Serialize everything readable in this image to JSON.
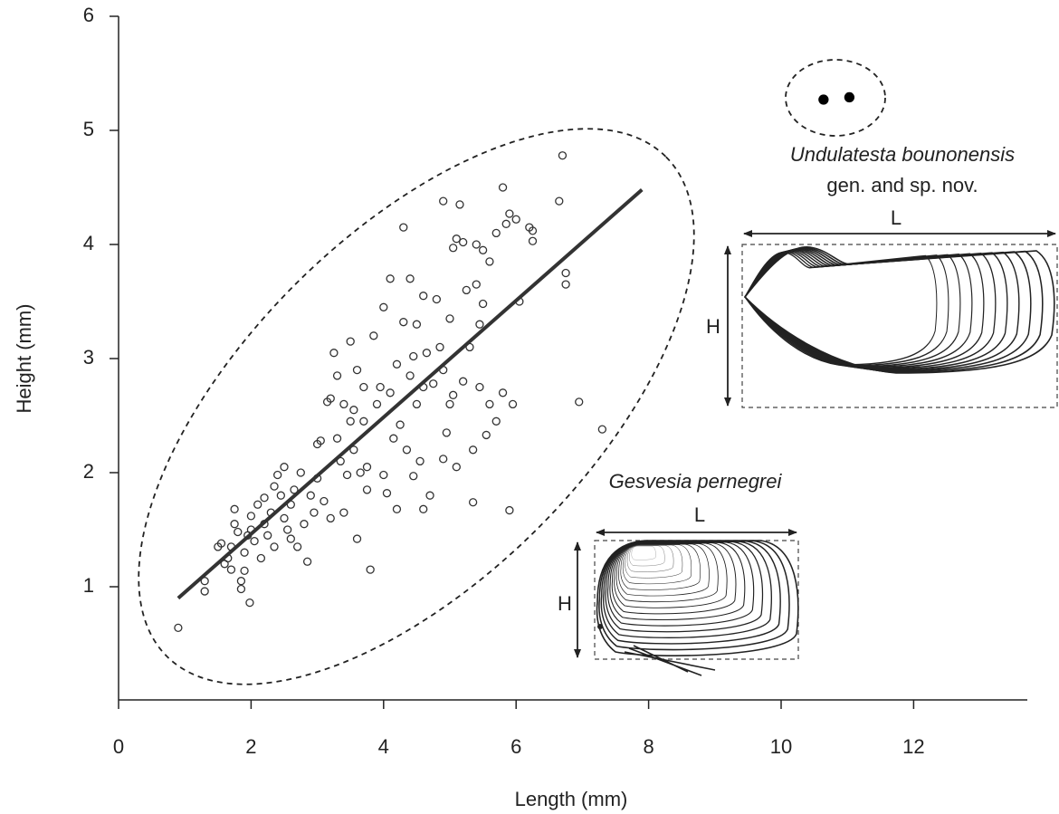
{
  "chart_data": {
    "type": "scatter",
    "xlabel": "Length (mm)",
    "ylabel": "Height (mm)",
    "xlim": [
      0,
      13.7
    ],
    "ylim": [
      0,
      6
    ],
    "xticks": [
      0,
      2,
      4,
      6,
      8,
      10,
      12
    ],
    "yticks": [
      1,
      2,
      3,
      4,
      5,
      6
    ],
    "series": [
      {
        "name": "Gesvesia pernegrei",
        "color": "#333333",
        "filled": false,
        "x": [
          0.9,
          1.3,
          1.3,
          1.5,
          1.55,
          1.6,
          1.65,
          1.7,
          1.75,
          1.75,
          1.8,
          1.85,
          1.85,
          1.9,
          1.9,
          1.95,
          2.0,
          1.98,
          2.05,
          2.1,
          2.15,
          2.2,
          2.2,
          2.25,
          2.3,
          2.35,
          2.35,
          2.4,
          2.45,
          2.5,
          2.5,
          2.55,
          2.6,
          2.65,
          2.7,
          2.75,
          2.8,
          2.85,
          2.9,
          2.95,
          3.0,
          3.0,
          3.05,
          3.1,
          3.15,
          3.2,
          3.2,
          3.25,
          3.3,
          3.35,
          3.4,
          3.4,
          3.45,
          3.5,
          3.5,
          3.55,
          3.55,
          3.6,
          3.6,
          3.65,
          3.7,
          3.7,
          3.75,
          3.75,
          3.8,
          3.85,
          3.9,
          3.95,
          4.0,
          4.0,
          4.05,
          4.1,
          4.1,
          4.15,
          4.2,
          4.2,
          4.25,
          4.3,
          4.3,
          4.35,
          4.4,
          4.4,
          4.45,
          4.5,
          4.5,
          4.55,
          4.6,
          4.6,
          4.6,
          4.65,
          4.7,
          4.75,
          4.8,
          4.85,
          4.9,
          4.9,
          4.95,
          5.0,
          5.0,
          5.05,
          5.05,
          5.1,
          5.1,
          5.15,
          5.2,
          5.2,
          5.25,
          5.3,
          5.35,
          5.35,
          5.4,
          5.4,
          5.45,
          5.5,
          5.5,
          5.55,
          5.6,
          5.6,
          5.7,
          5.7,
          5.8,
          5.8,
          5.85,
          5.9,
          5.9,
          5.95,
          6.0,
          6.05,
          6.2,
          6.25,
          6.25,
          6.65,
          6.7,
          6.75,
          6.75,
          6.95,
          7.3,
          4.45,
          3.3,
          2.0,
          1.7,
          2.6,
          4.9,
          5.45
        ],
        "values": [
          0.64,
          0.96,
          1.05,
          1.35,
          1.38,
          1.2,
          1.25,
          1.15,
          1.68,
          1.55,
          1.48,
          1.05,
          0.98,
          1.3,
          1.14,
          1.45,
          1.5,
          0.86,
          1.4,
          1.72,
          1.25,
          1.78,
          1.55,
          1.45,
          1.65,
          1.88,
          1.35,
          1.98,
          1.8,
          2.05,
          1.6,
          1.5,
          1.72,
          1.85,
          1.35,
          2.0,
          1.55,
          1.22,
          1.8,
          1.65,
          1.95,
          2.25,
          2.28,
          1.75,
          2.62,
          2.65,
          1.6,
          3.05,
          2.3,
          2.1,
          2.6,
          1.65,
          1.98,
          2.45,
          3.15,
          2.55,
          2.2,
          1.42,
          2.9,
          2.0,
          2.75,
          2.45,
          2.05,
          1.85,
          1.15,
          3.2,
          2.6,
          2.75,
          3.45,
          1.98,
          1.82,
          3.7,
          2.7,
          2.3,
          2.95,
          1.68,
          2.42,
          4.15,
          3.32,
          2.2,
          3.7,
          2.85,
          1.97,
          3.3,
          2.6,
          2.1,
          3.55,
          2.75,
          1.68,
          3.05,
          1.8,
          2.78,
          3.52,
          3.1,
          4.38,
          2.9,
          2.35,
          3.35,
          2.6,
          3.97,
          2.68,
          4.05,
          2.05,
          4.35,
          4.02,
          2.8,
          3.6,
          3.1,
          1.74,
          2.2,
          4.0,
          3.65,
          2.75,
          3.95,
          3.48,
          2.33,
          3.85,
          2.6,
          4.1,
          2.45,
          4.5,
          2.7,
          4.18,
          4.27,
          1.67,
          2.6,
          4.22,
          3.5,
          4.15,
          4.12,
          4.03,
          4.38,
          4.78,
          3.75,
          3.65,
          2.62,
          2.38,
          3.02,
          2.85,
          1.62,
          1.35,
          1.42,
          2.12,
          3.3
        ]
      },
      {
        "name": "Undulatesta bounonensis",
        "color": "#000000",
        "filled": true,
        "x": [
          10.64,
          11.03
        ],
        "values": [
          5.27,
          5.29
        ]
      }
    ],
    "trend_line": {
      "x": [
        0.9,
        7.9
      ],
      "values": [
        0.9,
        4.48
      ],
      "color": "#333333"
    },
    "annotations": {
      "new_taxon_note": "gen. and sp. nov.",
      "upper_length": "L",
      "upper_height": "H",
      "lower_length": "L",
      "lower_height": "H"
    }
  }
}
